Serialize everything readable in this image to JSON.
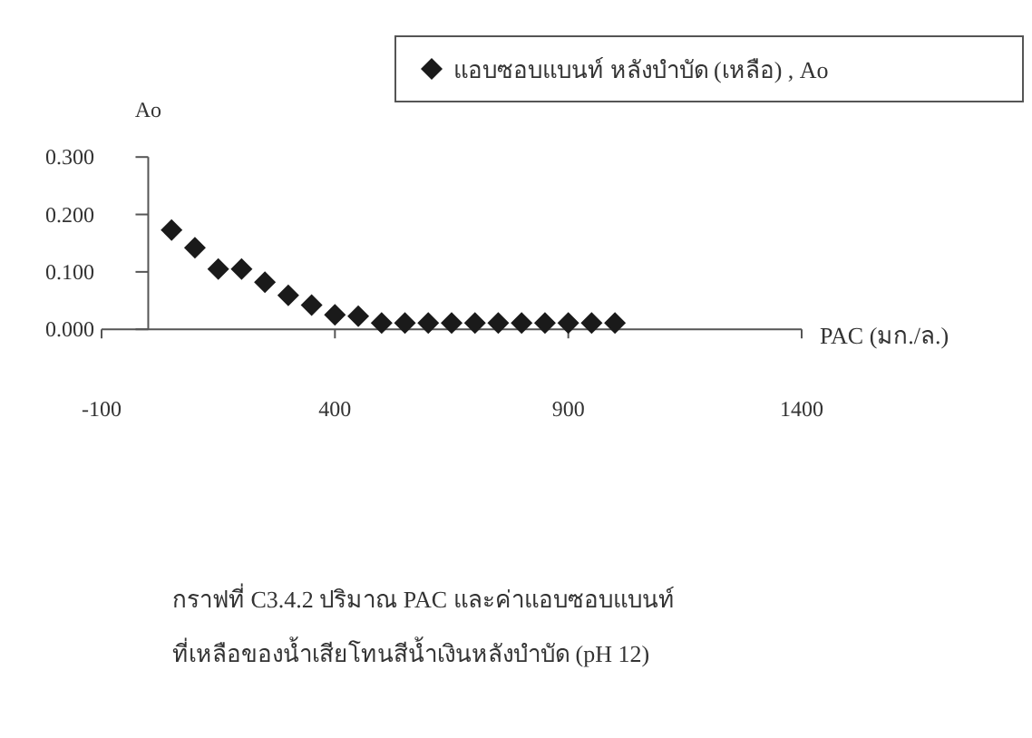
{
  "chart_data": {
    "type": "scatter",
    "xlabel": "PAC (มก./ล.)",
    "ylabel": "Ao",
    "x": [
      50,
      100,
      150,
      200,
      250,
      300,
      350,
      400,
      450,
      500,
      550,
      600,
      650,
      700,
      750,
      800,
      850,
      900,
      950,
      1000
    ],
    "series": [
      {
        "name": "แอบซอบแบนท์ หลังบำบัด (เหลือ) , Ao",
        "color": "#1a1a1a",
        "values": [
          0.173,
          0.142,
          0.105,
          0.105,
          0.082,
          0.059,
          0.042,
          0.025,
          0.023,
          0.011,
          0.011,
          0.011,
          0.011,
          0.011,
          0.011,
          0.011,
          0.011,
          0.011,
          0.011,
          0.011
        ]
      }
    ],
    "xlim": [
      -100,
      1400
    ],
    "xticks": [
      -100,
      400,
      900,
      1400
    ],
    "ylim": [
      0,
      0.3
    ],
    "yticks": [
      {
        "value": 0,
        "label": "0.000"
      },
      {
        "value": 0.1,
        "label": "0.100"
      },
      {
        "value": 0.2,
        "label": "0.200"
      },
      {
        "value": 0.3,
        "label": "0.300"
      }
    ],
    "marker": "diamond",
    "legend": "top right",
    "annotations": [
      "กราฟที่ C3.4.2 ปริมาณ PAC และค่าแอบซอบแบนท์",
      "ที่เหลือของน้ำเสียโทนสีน้ำเงินหลังบำบัด (pH 12)"
    ]
  }
}
